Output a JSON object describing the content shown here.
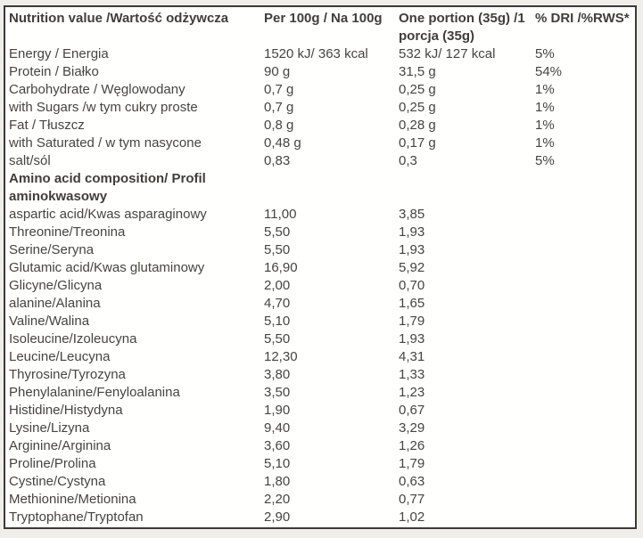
{
  "page": {
    "background_color": "#f0eee9",
    "table_background_color": "#fffffe",
    "border_color": "#3a3a38",
    "text_color": "#45443f"
  },
  "table": {
    "header": {
      "nutrition_value": "Nutrition value /Wartość odżywcza",
      "per_100g": "Per 100g / Na 100g",
      "one_portion_line1": "One portion (35g) /1",
      "one_portion_line2": "porcja (35g)",
      "dri": "% DRI /%RWS*"
    },
    "nutrition_rows": [
      {
        "label": "Energy / Energia",
        "per100": "1520 kJ/ 363 kcal",
        "portion": "532 kJ/ 127 kcal",
        "dri": "5%"
      },
      {
        "label": "Protein / Białko",
        "per100": "90 g",
        "portion": "31,5 g",
        "dri": "54%"
      },
      {
        "label": "Carbohydrate / Węglowodany",
        "per100": "0,7 g",
        "portion": "0,25 g",
        "dri": "1%"
      },
      {
        "label": "with Sugars /w tym cukry proste",
        "per100": "0,7 g",
        "portion": "0,25 g",
        "dri": "1%"
      },
      {
        "label": "Fat / Tłuszcz",
        "per100": "0,8 g",
        "portion": "0,28 g",
        "dri": "1%"
      },
      {
        "label": "with Saturated / w tym nasycone",
        "per100": "0,48 g",
        "portion": "0,17 g",
        "dri": "1%"
      },
      {
        "label": "salt/sól",
        "per100": "0,83",
        "portion": "0,3",
        "dri": "5%"
      }
    ],
    "section_header_line1": "Amino acid composition/ Profil",
    "section_header_line2": "aminokwasowy",
    "amino_rows": [
      {
        "label": "aspartic acid/Kwas asparaginowy",
        "per100": "11,00",
        "portion": "3,85"
      },
      {
        "label": "Threonine/Treonina",
        "per100": "5,50",
        "portion": "1,93"
      },
      {
        "label": "Serine/Seryna",
        "per100": "5,50",
        "portion": "1,93"
      },
      {
        "label": "Glutamic acid/Kwas glutaminowy",
        "per100": "16,90",
        "portion": "5,92"
      },
      {
        "label": "Glicyne/Glicyna",
        "per100": "2,00",
        "portion": "0,70"
      },
      {
        "label": "alanine/Alanina",
        "per100": "4,70",
        "portion": "1,65"
      },
      {
        "label": "Valine/Walina",
        "per100": "5,10",
        "portion": "1,79"
      },
      {
        "label": "Isoleucine/Izoleucyna",
        "per100": "5,50",
        "portion": "1,93"
      },
      {
        "label": "Leucine/Leucyna",
        "per100": "12,30",
        "portion": "4,31"
      },
      {
        "label": "Thyrosine/Tyrozyna",
        "per100": "3,80",
        "portion": "1,33"
      },
      {
        "label": "Phenylalanine/Fenyloalanina",
        "per100": "3,50",
        "portion": "1,23"
      },
      {
        "label": "Histidine/Histydyna",
        "per100": "1,90",
        "portion": "0,67"
      },
      {
        "label": "Lysine/Lizyna",
        "per100": "9,40",
        "portion": "3,29"
      },
      {
        "label": "Arginine/Arginina",
        "per100": "3,60",
        "portion": "1,26"
      },
      {
        "label": "Proline/Prolina",
        "per100": "5,10",
        "portion": "1,79"
      },
      {
        "label": "Cystine/Cystyna",
        "per100": "1,80",
        "portion": "0,63"
      },
      {
        "label": "Methionine/Metionina",
        "per100": "2,20",
        "portion": "0,77"
      },
      {
        "label": "Tryptophane/Tryptofan",
        "per100": "2,90",
        "portion": "1,02"
      }
    ]
  }
}
